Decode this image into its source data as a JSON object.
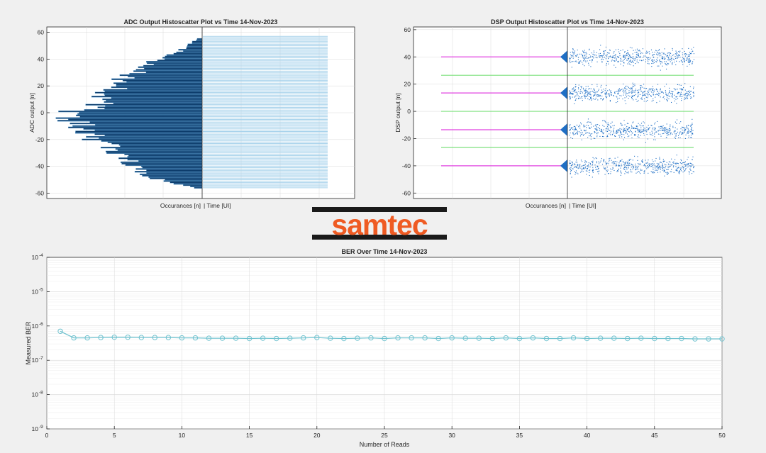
{
  "logo": {
    "text": "samtec",
    "color": "#ef5b23"
  },
  "colors": {
    "axes_bg": "#ffffff",
    "figure_bg": "#f0f0f0",
    "hist_fill": "#0d3c6b",
    "hist_edge": "#6fb6e8",
    "scatter": "#a9d3ec",
    "dsp_scatter": "#1f6fc5",
    "magenta": "#e040e0",
    "green": "#7ee07e",
    "ber_line": "#6fc2cf",
    "grid": "#d9d9d9",
    "axis": "#262626"
  },
  "chart_data": [
    {
      "id": "adc",
      "type": "histoscatter",
      "title": "ADC Output Histoscatter Plot vs Time   14-Nov-2023",
      "xlabel_left": "Occurances [n]",
      "xlabel_right": "| Time [UI]",
      "ylabel": "ADC output [n]",
      "ylim": [
        -64,
        64
      ],
      "yticks": [
        -60,
        -40,
        -20,
        0,
        20,
        40,
        60
      ],
      "hist_y_range": [
        -56,
        55
      ],
      "hist_scale": 1.0,
      "hist_envelope": [
        [
          -56,
          0.05
        ],
        [
          -54,
          0.12
        ],
        [
          -50,
          0.28
        ],
        [
          -46,
          0.38
        ],
        [
          -40,
          0.45
        ],
        [
          -30,
          0.55
        ],
        [
          -20,
          0.68
        ],
        [
          -10,
          0.8
        ],
        [
          -5,
          0.92
        ],
        [
          0,
          0.84
        ],
        [
          5,
          0.74
        ],
        [
          10,
          0.68
        ],
        [
          20,
          0.58
        ],
        [
          30,
          0.45
        ],
        [
          40,
          0.28
        ],
        [
          45,
          0.16
        ],
        [
          50,
          0.1
        ],
        [
          55,
          0.03
        ]
      ],
      "scatter_y_range": [
        -56,
        57
      ]
    },
    {
      "id": "dsp",
      "type": "histoscatter",
      "title": "DSP Output Histoscatter Plot vs Time   14-Nov-2023",
      "xlabel_left": "Occurances [n]",
      "xlabel_right": "| Time [UI]",
      "ylabel": "DSP output [n]",
      "ylim": [
        -64,
        62
      ],
      "yticks": [
        -60,
        -40,
        -20,
        0,
        20,
        40,
        60
      ],
      "levels": [
        40,
        13.5,
        -13.5,
        -40
      ],
      "thresholds": [
        26.5,
        0,
        -26.5
      ],
      "level_spread": 3.0
    },
    {
      "id": "ber",
      "type": "line",
      "title": "BER Over Time   14-Nov-2023",
      "xlabel": "Number of Reads",
      "ylabel": "Measured BER",
      "xlim": [
        0,
        50
      ],
      "xticks": [
        0,
        5,
        10,
        15,
        20,
        25,
        30,
        35,
        40,
        45,
        50
      ],
      "ylim_log10": [
        -9,
        -4
      ],
      "ytick_labels": [
        "10^-9",
        "10^-8",
        "10^-7",
        "10^-6",
        "10^-5",
        "10^-4"
      ],
      "yscale": "log",
      "grid": true,
      "series": [
        {
          "x": [
            1,
            2,
            3,
            4,
            5,
            6,
            7,
            8,
            9,
            10,
            11,
            12,
            13,
            14,
            15,
            16,
            17,
            18,
            19,
            20,
            21,
            22,
            23,
            24,
            25,
            26,
            27,
            28,
            29,
            30,
            31,
            32,
            33,
            34,
            35,
            36,
            37,
            38,
            39,
            40,
            41,
            42,
            43,
            44,
            45,
            46,
            47,
            48,
            49,
            50
          ],
          "values": [
            7e-07,
            4.5e-07,
            4.5e-07,
            4.6e-07,
            4.7e-07,
            4.7e-07,
            4.6e-07,
            4.6e-07,
            4.6e-07,
            4.5e-07,
            4.5e-07,
            4.4e-07,
            4.4e-07,
            4.4e-07,
            4.3e-07,
            4.4e-07,
            4.3e-07,
            4.4e-07,
            4.5e-07,
            4.6e-07,
            4.4e-07,
            4.3e-07,
            4.4e-07,
            4.5e-07,
            4.3e-07,
            4.5e-07,
            4.5e-07,
            4.5e-07,
            4.3e-07,
            4.5e-07,
            4.4e-07,
            4.4e-07,
            4.3e-07,
            4.5e-07,
            4.3e-07,
            4.5e-07,
            4.3e-07,
            4.3e-07,
            4.5e-07,
            4.3e-07,
            4.4e-07,
            4.4e-07,
            4.3e-07,
            4.4e-07,
            4.3e-07,
            4.3e-07,
            4.3e-07,
            4.2e-07,
            4.2e-07,
            4.2e-07
          ]
        }
      ]
    }
  ]
}
